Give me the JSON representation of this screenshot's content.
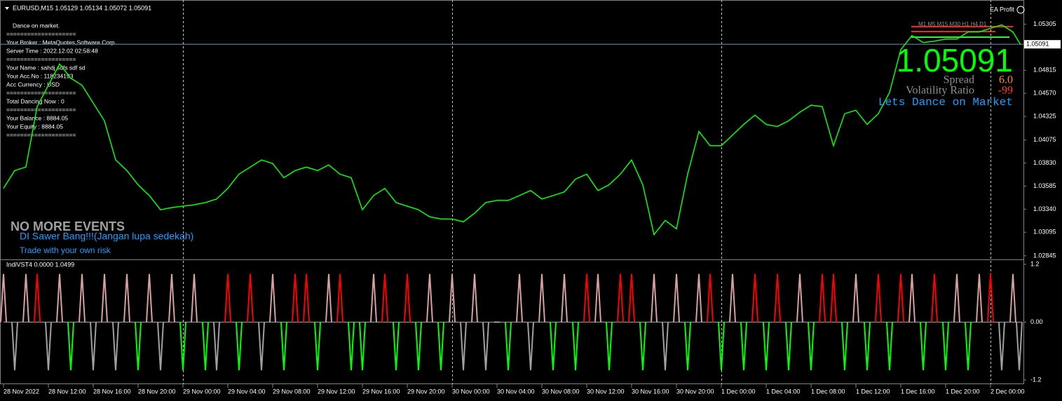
{
  "header": "EURUSD,M15  1.05129 1.05134 1.05072 1.05091",
  "info_panel": {
    "lines": [
      "Dance on market.",
      "====================",
      "Your Broker  : MetaQuotes Software Corp.",
      "Server Time : 2022.12.02 02:58:48",
      "====================",
      "Your Name    : sahdj  sdfs sdf  sd",
      "Your Acc.No  : 118234193",
      "Acc Currency : USD",
      "====================",
      "Total Dancing Now : 0",
      "====================",
      "Your Balance : 8884.05",
      "Your Equity   : 8884.05",
      "===================="
    ]
  },
  "overlay": {
    "ea_label": "EA Profit",
    "timeframes": "M1   M5  M15 M30  H1   H4   D1",
    "spread_label": "Spread",
    "spread": "6.0",
    "volatility_label": "Volatility Ratio",
    "volatility": "-99",
    "motto": "Lets Dance on Market",
    "events": "NO MORE EVENTS",
    "note": "DI Sawer Bang!!!(Jangan lupa sedekah)",
    "risk": "Trade with your own risk"
  },
  "chart_data": [
    {
      "type": "line",
      "last_price": 1.05091,
      "color": "#00ff00",
      "categories": [
        "28 Nov 2022",
        null,
        null,
        null,
        "28 Nov 12:00",
        null,
        null,
        null,
        "28 Nov 16:00",
        null,
        null,
        null,
        "28 Nov 20:00",
        null,
        null,
        null,
        "29 Nov 00:00",
        null,
        null,
        null,
        "29 Nov 04:00",
        null,
        null,
        null,
        "29 Nov 08:00",
        null,
        null,
        null,
        "29 Nov 12:00",
        null,
        null,
        null,
        "29 Nov 16:00",
        null,
        null,
        null,
        "29 Nov 20:00",
        null,
        null,
        null,
        "30 Nov 00:00",
        null,
        null,
        null,
        "30 Nov 04:00",
        null,
        null,
        null,
        "30 Nov 08:00",
        null,
        null,
        null,
        "30 Nov 12:00",
        null,
        null,
        null,
        "30 Nov 16:00",
        null,
        null,
        null,
        "30 Nov 20:00",
        null,
        null,
        null,
        "1 Dec 00:00",
        null,
        null,
        null,
        "1 Dec 04:00",
        null,
        null,
        null,
        "1 Dec 08:00",
        null,
        null,
        null,
        "1 Dec 12:00",
        null,
        null,
        null,
        "1 Dec 16:00",
        null,
        null,
        null,
        "1 Dec 20:00",
        null,
        null,
        null,
        "2 Dec 00:00",
        null,
        null,
        null
      ],
      "values": [
        1.03561,
        1.0375,
        1.03787,
        1.04429,
        1.04656,
        1.04882,
        1.04731,
        1.04656,
        1.04467,
        1.04278,
        1.03863,
        1.0375,
        1.03599,
        1.03485,
        1.03334,
        1.03357,
        1.03372,
        1.03387,
        1.0341,
        1.03448,
        1.03561,
        1.03712,
        1.03787,
        1.03863,
        1.03825,
        1.03674,
        1.0375,
        1.03787,
        1.0375,
        1.0381,
        1.03712,
        1.03674,
        1.03334,
        1.03485,
        1.03561,
        1.0341,
        1.03372,
        1.03334,
        1.03259,
        1.03236,
        1.03236,
        1.03206,
        1.03297,
        1.0341,
        1.03433,
        1.03433,
        1.03485,
        1.03538,
        1.03448,
        1.03485,
        1.03523,
        1.03659,
        1.03712,
        1.03538,
        1.03599,
        1.03712,
        1.03863,
        1.03599,
        1.0307,
        1.03221,
        1.03131,
        1.03712,
        1.04165,
        1.04014,
        1.04014,
        1.04127,
        1.0424,
        1.04339,
        1.0424,
        1.04218,
        1.04278,
        1.04369,
        1.04444,
        1.04429,
        1.04014,
        1.04354,
        1.04391,
        1.0424,
        1.04354,
        1.0458,
        1.05033,
        1.05184,
        1.05109,
        1.05124,
        1.05146,
        1.05146,
        1.05222,
        1.05222,
        1.0526,
        1.05297,
        1.05222,
        1.05086
      ],
      "ylim": [
        1.02807,
        1.05524
      ],
      "yticks": [
        1.05305,
        1.04815,
        {
          "value": 1.0457,
          "label": "1.04570"
        },
        1.04325,
        1.04075,
        {
          "value": 1.0383,
          "label": "1.03830"
        },
        1.03585,
        {
          "value": 1.0334,
          "label": "1.03340"
        },
        1.03095,
        1.02845
      ]
    },
    {
      "type": "spikes",
      "title": "IndiVST4 0.0000 1.0499",
      "values": [
        1,
        -1,
        1,
        1,
        -1,
        1,
        -1,
        1,
        -1,
        1,
        -1,
        1,
        -1,
        1,
        -1,
        1,
        -1,
        1,
        -1,
        -1,
        1,
        -1,
        1,
        -1,
        1,
        -1,
        1,
        1,
        -1,
        1,
        1,
        -1,
        -1,
        1,
        1,
        -1,
        1,
        -1,
        1,
        -1,
        1,
        -1,
        1,
        -1,
        0,
        -1,
        1,
        -1,
        1,
        -1,
        1,
        -1,
        1,
        1,
        -1,
        1,
        1,
        -1,
        1,
        -1,
        1,
        -1,
        1,
        1,
        -1,
        1,
        -1,
        1,
        -1,
        1,
        -1,
        1,
        -1,
        1,
        1,
        -1,
        1,
        -1,
        1,
        -1,
        1,
        1,
        -1,
        1,
        -1,
        1,
        -1,
        1,
        1,
        -1,
        1,
        -1
      ],
      "colors": [
        "#d8a0a0",
        "#a0a0a0",
        "#d8a0a0",
        "#ff0000",
        "#a0a0a0",
        "#d8a0a0",
        "#00ff00",
        "#d8a0a0",
        "#a0a0a0",
        "#d8a0a0",
        "#a0a0a0",
        "#d8a0a0",
        "#00ff00",
        "#d8a0a0",
        "#a0a0a0",
        "#d8a0a0",
        "#00ff00",
        "#d8a0a0",
        "#00ff00",
        "#a0a0a0",
        "#ff0000",
        "#00ff00",
        "#ff0000",
        "#a0a0a0",
        "#d8a0a0",
        "#00ff00",
        "#ff0000",
        "#ff0000",
        "#00ff00",
        "#d8a0a0",
        "#ff0000",
        "#00ff00",
        "#00ff00",
        "#d8a0a0",
        "#ff0000",
        "#00ff00",
        "#ff0000",
        "#00ff00",
        "#d8a0a0",
        "#00ff00",
        "#d8a0a0",
        "#a0a0a0",
        "#d8a0a0",
        "#a0a0a0",
        "#a0a0a0",
        "#00ff00",
        "#d8a0a0",
        "#a0a0a0",
        "#d8a0a0",
        "#00ff00",
        "#d8a0a0",
        "#00ff00",
        "#ff0000",
        "#d8a0a0",
        "#00ff00",
        "#ff0000",
        "#ff0000",
        "#00ff00",
        "#d8a0a0",
        "#a0a0a0",
        "#d8a0a0",
        "#00ff00",
        "#d8a0a0",
        "#ff0000",
        "#00ff00",
        "#d8a0a0",
        "#00ff00",
        "#ff0000",
        "#00ff00",
        "#ff0000",
        "#00ff00",
        "#d8a0a0",
        "#00ff00",
        "#ff0000",
        "#ff0000",
        "#00ff00",
        "#d8a0a0",
        "#00ff00",
        "#ff0000",
        "#00ff00",
        "#ff0000",
        "#d8a0a0",
        "#00ff00",
        "#ff0000",
        "#00ff00",
        "#d8a0a0",
        "#00ff00",
        "#d8a0a0",
        "#ff0000",
        "#a0a0a0",
        "#d8a0a0",
        "#a0a0a0"
      ],
      "ylim": [
        -1.25,
        1.25
      ],
      "yticks": [
        1.2,
        {
          "value": 0,
          "label": "0.00"
        },
        -1.2
      ]
    }
  ]
}
